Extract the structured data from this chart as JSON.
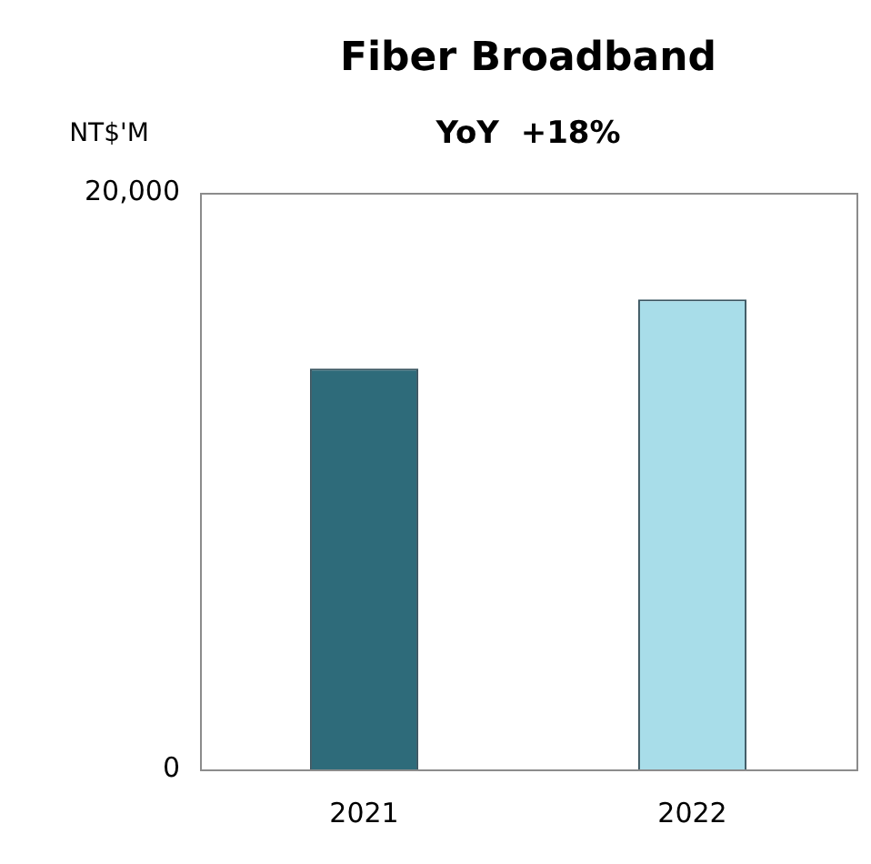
{
  "chart_data": {
    "type": "bar",
    "title": "Fiber Broadband",
    "subtitle": "YoY  +18%",
    "ylabel": "NT$'M",
    "categories": [
      "2021",
      "2022"
    ],
    "values": [
      13900,
      16300
    ],
    "colors": [
      "#2e6b7a",
      "#a8dde9"
    ],
    "ylim": [
      0,
      20000
    ],
    "yticks": [
      0,
      {
        "value": 20000,
        "label": "20,000"
      }
    ],
    "grid": false,
    "legend": false
  }
}
